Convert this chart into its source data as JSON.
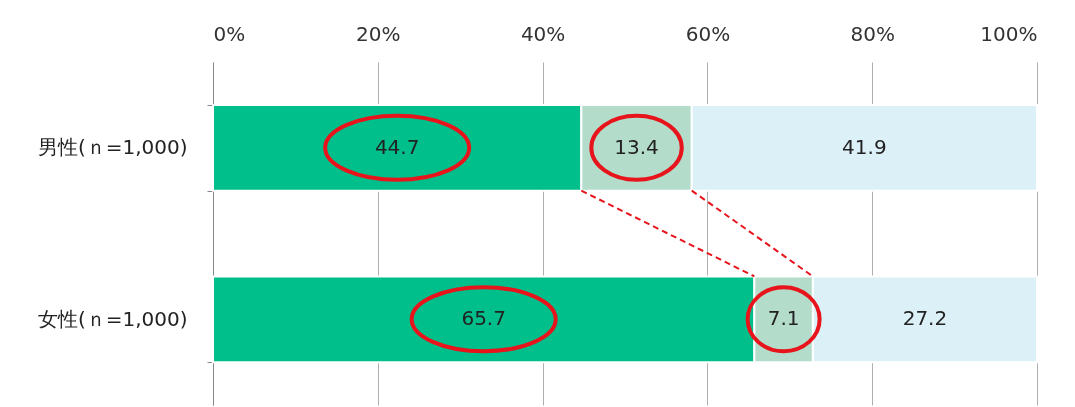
{
  "chart_data": {
    "type": "bar",
    "orientation": "horizontal",
    "stacked": true,
    "categories": [
      "男性(ｎ=1,000)",
      "女性(ｎ=1,000)"
    ],
    "series": [
      {
        "color": "#00bf8b",
        "values": [
          44.7,
          65.7
        ]
      },
      {
        "color": "#b3dccb",
        "values": [
          13.4,
          7.1
        ]
      },
      {
        "color": "#dcf0f8",
        "values": [
          41.9,
          27.2
        ]
      }
    ],
    "xlim": [
      0,
      100
    ],
    "xticks": [
      {
        "value": 0,
        "label": "0%"
      },
      {
        "value": 20,
        "label": "20%"
      },
      {
        "value": 40,
        "label": "40%"
      },
      {
        "value": 60,
        "label": "60%"
      },
      {
        "value": 80,
        "label": "80%"
      },
      {
        "value": 100,
        "label": "100%"
      }
    ],
    "grid": "x",
    "data_labels": true
  }
}
